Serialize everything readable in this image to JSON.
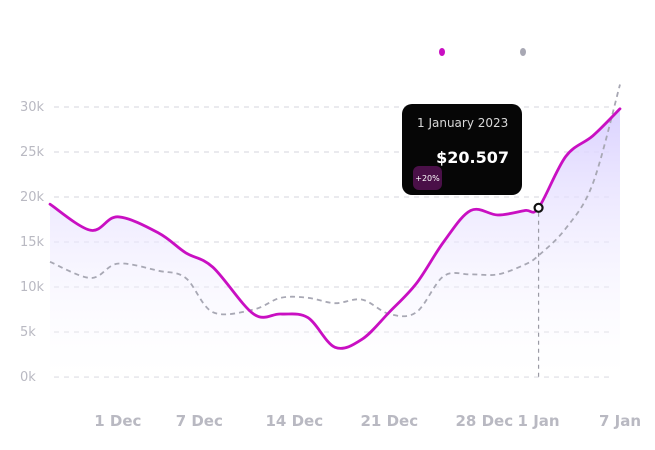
{
  "chart_data": {
    "type": "line",
    "x": [
      "2022-11-26",
      "2022-11-29",
      "2022-12-01",
      "2022-12-04",
      "2022-12-06",
      "2022-12-08",
      "2022-12-11",
      "2022-12-13",
      "2022-12-15",
      "2022-12-17",
      "2022-12-19",
      "2022-12-21",
      "2022-12-23",
      "2022-12-25",
      "2022-12-27",
      "2022-12-29",
      "2022-12-31",
      "2023-01-01",
      "2023-01-03",
      "2023-01-05",
      "2023-01-07"
    ],
    "series": [
      {
        "values": [
          19200,
          16300,
          17800,
          16000,
          13800,
          12200,
          7000,
          7000,
          6600,
          3300,
          4200,
          7200,
          10400,
          15000,
          18500,
          18000,
          18500,
          18800,
          24500,
          26800,
          29800
        ],
        "color": "#c90fc2",
        "style": "solid"
      },
      {
        "values": [
          12800,
          11000,
          12600,
          11800,
          11000,
          7200,
          7500,
          8800,
          8800,
          8200,
          8600,
          7000,
          7200,
          11200,
          11400,
          11400,
          12500,
          13500,
          16500,
          21500,
          32500
        ],
        "color": "#a8a8b4",
        "style": "dashed"
      }
    ],
    "x_tick_labels": [
      "1 Dec",
      "7 Dec",
      "14 Dec",
      "21 Dec",
      "28 Dec",
      "1 Jan",
      "7 Jan"
    ],
    "x_tick_dates": [
      "2022-12-01",
      "2022-12-07",
      "2022-12-14",
      "2022-12-21",
      "2022-12-28",
      "2023-01-01",
      "2023-01-07"
    ],
    "y_tick_labels": [
      "0k",
      "5k",
      "10k",
      "15k",
      "20k",
      "25k",
      "30k"
    ],
    "y_tick_values": [
      0,
      5000,
      10000,
      15000,
      20000,
      25000,
      30000
    ],
    "xlim": [
      "2022-11-26",
      "2023-01-07"
    ],
    "ylim": [
      0,
      33000
    ],
    "grid": true,
    "legend": "top-right",
    "tooltip": {
      "date": "1 January 2023",
      "x": "2023-01-01",
      "y": 18800,
      "value": "$20.507",
      "badge": "+20%"
    }
  },
  "colors": {
    "primary": "#c90fc2",
    "secondary": "#a8a8b4",
    "fill_top": "#d9d0ff",
    "tooltip_bg": "#060606",
    "badge_bg": "#4a1048"
  }
}
